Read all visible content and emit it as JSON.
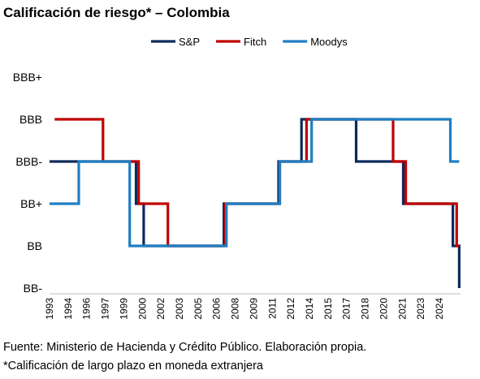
{
  "chart_data": {
    "type": "line",
    "step": true,
    "title": "Calificación de riesgo* – Colombia",
    "xlabel": "",
    "ylabel": "",
    "y_levels": [
      "BB-",
      "BB",
      "BB+",
      "BBB-",
      "BBB",
      "BBB+"
    ],
    "x_ticks": [
      "1993",
      "1994",
      "1996",
      "1997",
      "1999",
      "2000",
      "2002",
      "2003",
      "2005",
      "2006",
      "2008",
      "2009",
      "2011",
      "2012",
      "2014",
      "2015",
      "2017",
      "2018",
      "2020",
      "2021",
      "2023",
      "2024"
    ],
    "xlim": [
      1993,
      2025.3
    ],
    "legend_position": "top-right",
    "grid": false,
    "series": [
      {
        "name": "S&P",
        "color": "#0d2a5c",
        "x": [
          1993.0,
          1999.8,
          2000.4,
          2006.7,
          2011.0,
          2012.8,
          2017.1,
          2020.8,
          2024.7,
          2025.2
        ],
        "y": [
          "BBB-",
          "BB+",
          "BB",
          "BB+",
          "BBB-",
          "BBB",
          "BBB-",
          "BB+",
          "BB",
          "BB-"
        ],
        "end": 2025.2
      },
      {
        "name": "Fitch",
        "color": "#c00000",
        "x": [
          1993.4,
          1997.2,
          2000.0,
          2002.3,
          2006.8,
          2011.1,
          2013.2,
          2020.0,
          2021.0,
          2025.0
        ],
        "y": [
          "BBB",
          "BBB-",
          "BB+",
          "BB",
          "BB+",
          "BBB-",
          "BBB",
          "BBB-",
          "BB+",
          "BB"
        ],
        "end": 2025.2
      },
      {
        "name": "Moodys",
        "color": "#1f7fc4",
        "x": [
          1993.0,
          1995.3,
          1999.3,
          2006.9,
          2011.1,
          2013.6,
          2024.5
        ],
        "y": [
          "BB+",
          "BBB-",
          "BB",
          "BB+",
          "BBB-",
          "BBB",
          "BBB-"
        ],
        "end": 2025.2
      }
    ]
  },
  "footer": {
    "source": "Fuente: Ministerio de Hacienda y Crédito Público. Elaboración propia.",
    "note": "*Calificación de largo plazo en moneda extranjera"
  }
}
